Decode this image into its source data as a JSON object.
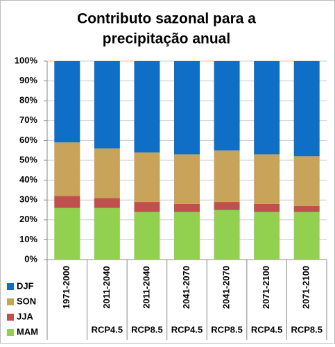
{
  "chart_data": {
    "type": "stacked_bar",
    "title": [
      "Contributo sazonal para a",
      "precipitação anual"
    ],
    "categories": [
      "1971-2000",
      "2011-2040",
      "2011-2040",
      "2041-2070",
      "2041-2070",
      "2071-2100",
      "2071-2100"
    ],
    "scenarios": [
      null,
      "RCP4.5",
      "RCP8.5",
      "RCP4.5",
      "RCP8.5",
      "RCP4.5",
      "RCP8.5"
    ],
    "series": [
      {
        "name": "MAM",
        "color": "#92d050",
        "values": [
          26,
          26,
          24,
          24,
          25,
          24,
          24
        ]
      },
      {
        "name": "JJA",
        "color": "#c0504d",
        "values": [
          6,
          5,
          5,
          4,
          4,
          4,
          3
        ]
      },
      {
        "name": "SON",
        "color": "#c8a35a",
        "values": [
          27,
          25,
          25,
          25,
          26,
          25,
          25
        ]
      },
      {
        "name": "DJF",
        "color": "#0f6fc6",
        "values": [
          41,
          44,
          46,
          47,
          45,
          47,
          48
        ]
      }
    ],
    "ylim": [
      0,
      100
    ],
    "yticks": [
      {
        "value": 0,
        "label": "0%"
      },
      {
        "value": 10,
        "label": "10%"
      },
      {
        "value": 20,
        "label": "20%"
      },
      {
        "value": 30,
        "label": "30%"
      },
      {
        "value": 40,
        "label": "40%"
      },
      {
        "value": 50,
        "label": "50%"
      },
      {
        "value": 60,
        "label": "60%"
      },
      {
        "value": 70,
        "label": "70%"
      },
      {
        "value": 80,
        "label": "80%"
      },
      {
        "value": 90,
        "label": "90%"
      },
      {
        "value": 100,
        "label": "100%"
      }
    ],
    "grid": true,
    "legend": "bottom-left"
  }
}
